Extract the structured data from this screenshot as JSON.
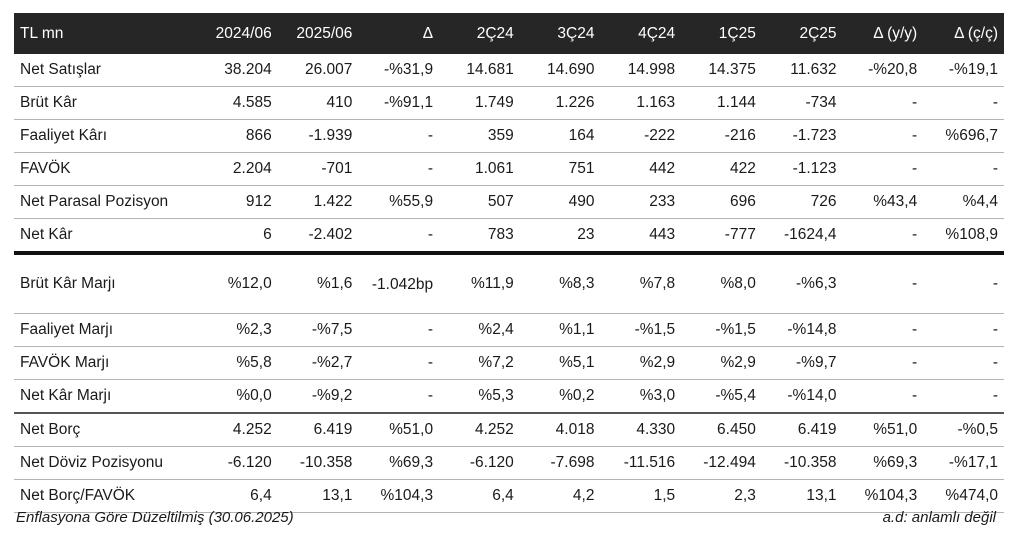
{
  "header": [
    "TL mn",
    "2024/06",
    "2025/06",
    "Δ",
    "2Ç24",
    "3Ç24",
    "4Ç24",
    "1Ç25",
    "2Ç25",
    "Δ (y/y)",
    "Δ (ç/ç)"
  ],
  "rows": [
    [
      "Net Satışlar",
      "38.204",
      "26.007",
      "-%31,9",
      "14.681",
      "14.690",
      "14.998",
      "14.375",
      "11.632",
      "-%20,8",
      "-%19,1"
    ],
    [
      "Brüt Kâr",
      "4.585",
      "410",
      "-%91,1",
      "1.749",
      "1.226",
      "1.163",
      "1.144",
      "-734",
      "-",
      "-"
    ],
    [
      "Faaliyet Kârı",
      "866",
      "-1.939",
      "-",
      "359",
      "164",
      "-222",
      "-216",
      "-1.723",
      "-",
      "%696,7"
    ],
    [
      "FAVÖK",
      "2.204",
      "-701",
      "-",
      "1.061",
      "751",
      "442",
      "422",
      "-1.123",
      "-",
      "-"
    ],
    [
      "Net Parasal Pozisyon",
      "912",
      "1.422",
      "%55,9",
      "507",
      "490",
      "233",
      "696",
      "726",
      "%43,4",
      "%4,4"
    ],
    [
      "Net Kâr",
      "6",
      "-2.402",
      "-",
      "783",
      "23",
      "443",
      "-777",
      "-1624,4",
      "-",
      "%108,9"
    ],
    [
      "Brüt Kâr Marjı",
      "%12,0",
      "%1,6",
      "-1.042bp",
      "%11,9",
      "%8,3",
      "%7,8",
      "%8,0",
      "-%6,3",
      "-",
      "-"
    ],
    [
      "Faaliyet Marjı",
      "%2,3",
      "-%7,5",
      "-",
      "%2,4",
      "%1,1",
      "-%1,5",
      "-%1,5",
      "-%14,8",
      "-",
      "-"
    ],
    [
      "FAVÖK Marjı",
      "%5,8",
      "-%2,7",
      "-",
      "%7,2",
      "%5,1",
      "%2,9",
      "%2,9",
      "-%9,7",
      "-",
      "-"
    ],
    [
      "Net Kâr Marjı",
      "%0,0",
      "-%9,2",
      "-",
      "%5,3",
      "%0,2",
      "%3,0",
      "-%5,4",
      "-%14,0",
      "-",
      "-"
    ],
    [
      "Net Borç",
      "4.252",
      "6.419",
      "%51,0",
      "4.252",
      "4.018",
      "4.330",
      "6.450",
      "6.419",
      "%51,0",
      "-%0,5"
    ],
    [
      "Net Döviz Pozisyonu",
      "-6.120",
      "-10.358",
      "%69,3",
      "-6.120",
      "-7.698",
      "-11.516",
      "-12.494",
      "-10.358",
      "%69,3",
      "-%17,1"
    ],
    [
      "Net Borç/FAVÖK",
      "6,4",
      "13,1",
      "%104,3",
      "6,4",
      "4,2",
      "1,5",
      "2,3",
      "13,1",
      "%104,3",
      "%474,0"
    ]
  ],
  "footer": {
    "left": "Enflasyona Göre Düzeltilmiş (30.06.2025)",
    "right": "a.d: anlamlı değil"
  }
}
